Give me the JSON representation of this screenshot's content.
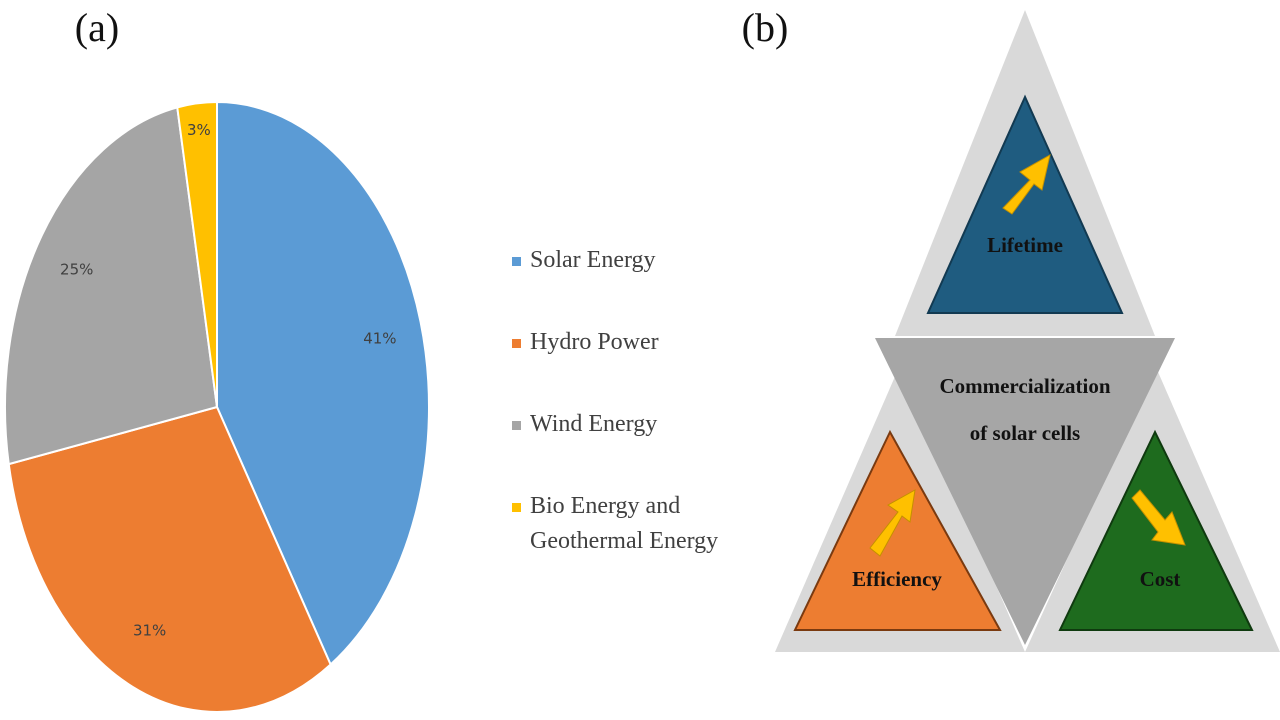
{
  "chart_data": {
    "type": "pie",
    "title": "(a)",
    "categories": [
      "Solar Energy",
      "Hydro Power",
      "Wind Energy",
      "Bio Energy and Geothermal Energy"
    ],
    "values": [
      41,
      31,
      25,
      3
    ],
    "value_labels": [
      "41%",
      "31%",
      "25%",
      "3%"
    ],
    "colors": [
      "#5b9bd5",
      "#ed7d31",
      "#a5a5a5",
      "#ffc000"
    ]
  },
  "diagram": {
    "label": "(b)",
    "center": [
      "Commercialization",
      "of solar cells"
    ],
    "nodes": [
      {
        "label": "Lifetime"
      },
      {
        "label": "Efficiency"
      },
      {
        "label": "Cost"
      }
    ]
  }
}
